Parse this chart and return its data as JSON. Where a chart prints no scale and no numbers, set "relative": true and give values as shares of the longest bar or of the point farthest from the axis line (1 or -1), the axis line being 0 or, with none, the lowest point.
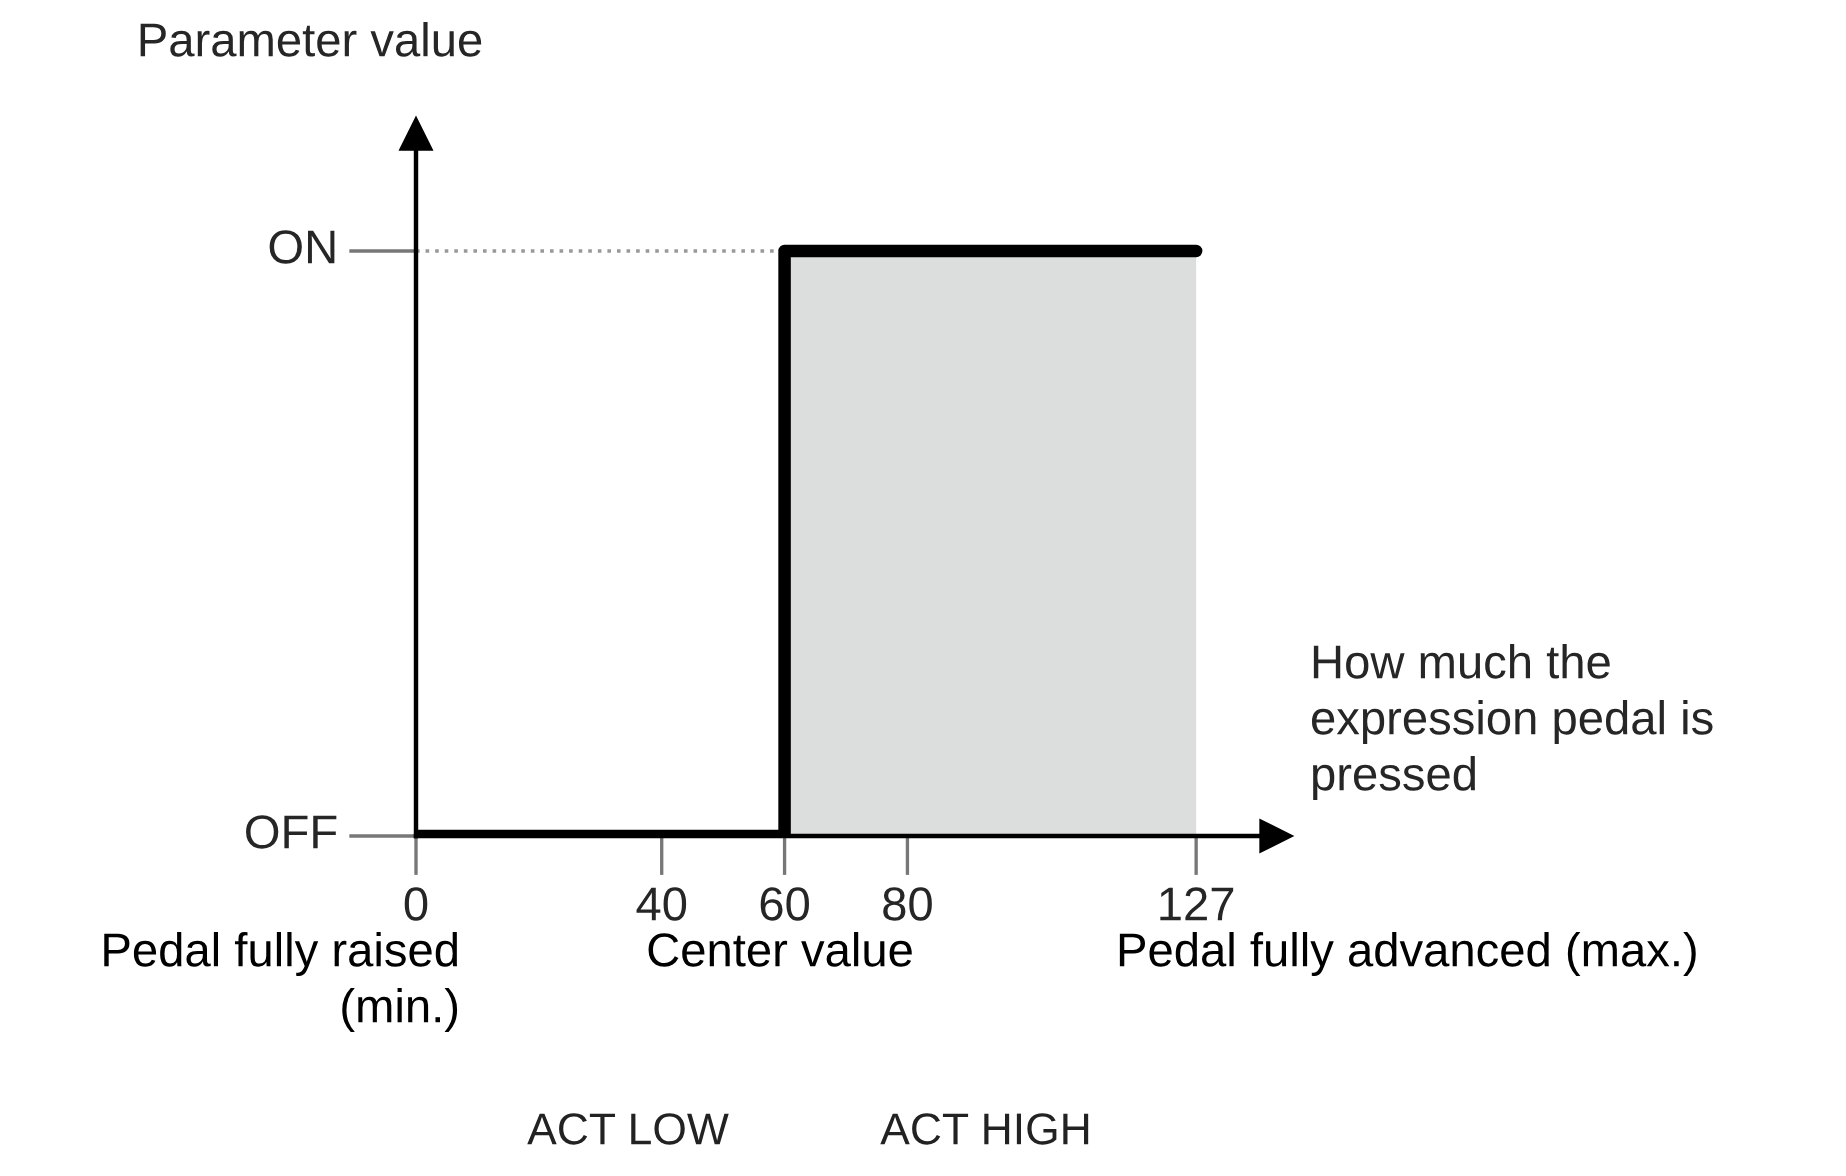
{
  "chart_data": {
    "type": "step",
    "xlabel": "How much the expression pedal is pressed",
    "ylabel": "Parameter value",
    "x": [
      0,
      60,
      127
    ],
    "series": [
      {
        "color": "#000000",
        "values": [
          0,
          1,
          1
        ]
      }
    ],
    "relative": true,
    "xlim": [
      0,
      140
    ],
    "xticks": [
      0,
      40,
      60,
      80,
      127
    ],
    "ref_lines": [
      {
        "axis": "y",
        "value": 1,
        "color": "#999999",
        "line_style": "dotted"
      }
    ],
    "bands": [
      {
        "axis": "x",
        "from": 60,
        "to": 127,
        "color": "#dcdddd"
      }
    ],
    "annotations": [
      {
        "text": "OFF",
        "x": 0,
        "y": 0
      },
      {
        "text": "ON",
        "x": 0,
        "y": 1
      },
      "Pedal fully raised (min.)",
      "Center value",
      "Pedal fully advanced (max.)",
      "ACT LOW",
      "ACT HIGH"
    ],
    "grid": false,
    "legend": false,
    "marker": "none",
    "line_style": "solid"
  }
}
